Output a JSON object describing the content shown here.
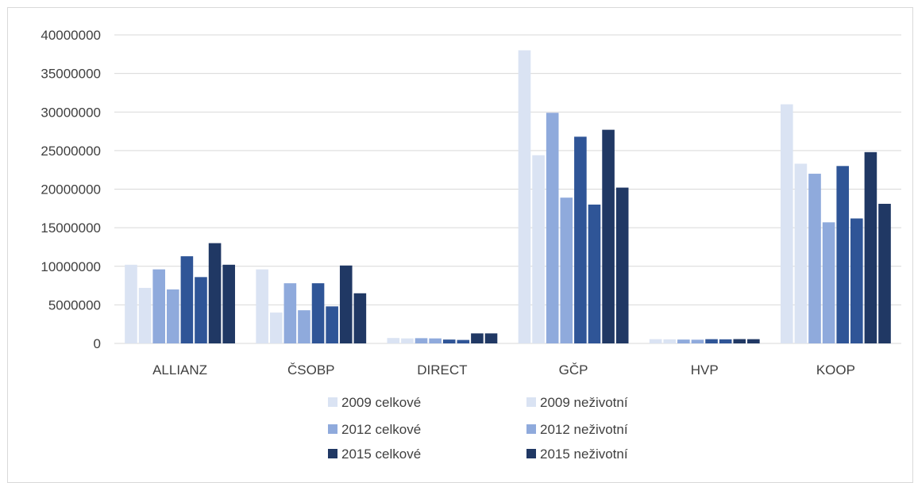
{
  "chart_data": {
    "type": "bar",
    "title": "",
    "xlabel": "",
    "ylabel": "",
    "ylim": [
      0,
      40000000
    ],
    "yticks": [
      0,
      5000000,
      10000000,
      15000000,
      20000000,
      25000000,
      30000000,
      35000000,
      40000000
    ],
    "grid": true,
    "legend_position": "bottom",
    "categories": [
      "ALLIANZ",
      "ČSOBP",
      "DIRECT",
      "GČP",
      "HVP",
      "KOOP"
    ],
    "series": [
      {
        "name": "2009 celkové",
        "color": "#dae3f3",
        "values": [
          10200000,
          9600000,
          700000,
          38000000,
          550000,
          31000000
        ]
      },
      {
        "name": "2009 neživotní",
        "color": "#dae3f3",
        "values": [
          7200000,
          4000000,
          650000,
          24400000,
          530000,
          23300000
        ]
      },
      {
        "name": "2012 celkové",
        "color": "#8faadc",
        "values": [
          9600000,
          7800000,
          680000,
          29900000,
          500000,
          22000000
        ]
      },
      {
        "name": "2012 neživotní",
        "color": "#8faadc",
        "values": [
          7000000,
          4300000,
          650000,
          18900000,
          480000,
          15700000
        ]
      },
      {
        "name": "2015 celkové",
        "color": "#2f5597",
        "values": [
          11300000,
          7800000,
          500000,
          26800000,
          550000,
          23000000
        ]
      },
      {
        "name": "2015 neživotní",
        "color": "#2f5597",
        "values": [
          8600000,
          4800000,
          450000,
          18000000,
          530000,
          16200000
        ]
      },
      {
        "name": "2015 celkové",
        "color": "#203864",
        "values": [
          13000000,
          10100000,
          1300000,
          27700000,
          560000,
          24800000
        ]
      },
      {
        "name": "2015 neživotní",
        "color": "#203864",
        "values": [
          10200000,
          6500000,
          1300000,
          20200000,
          550000,
          18100000
        ]
      }
    ],
    "legend": [
      {
        "label": "2009 celkové",
        "color": "#dae3f3"
      },
      {
        "label": "2009 neživotní",
        "color": "#dae3f3"
      },
      {
        "label": "2012 celkové",
        "color": "#8faadc"
      },
      {
        "label": "2012 neživotní",
        "color": "#8faadc"
      },
      {
        "label": "2015 celkové",
        "color": "#203864"
      },
      {
        "label": "2015 neživotní",
        "color": "#203864"
      }
    ],
    "gridline_color": "#d9d9d9",
    "text_color": "#404040"
  }
}
